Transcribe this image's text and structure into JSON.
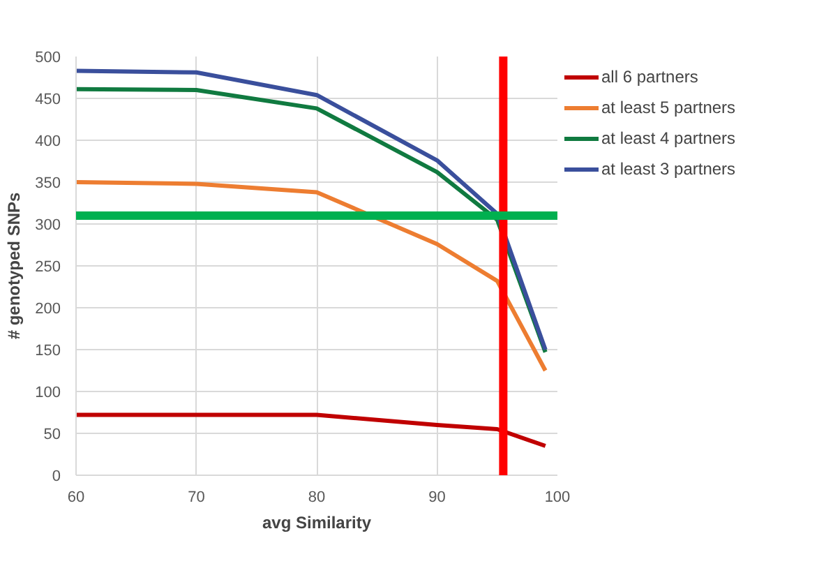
{
  "chart_data": {
    "type": "line",
    "xlabel": "avg Similarity",
    "ylabel": "# genotyped SNPs",
    "x": [
      60,
      70,
      80,
      90,
      95,
      99
    ],
    "series": [
      {
        "name": "all 6 partners",
        "color": "#c00000",
        "values": [
          72,
          72,
          72,
          60,
          55,
          35
        ]
      },
      {
        "name": "at least 5 partners",
        "color": "#ed7d31",
        "values": [
          350,
          348,
          338,
          276,
          232,
          125
        ]
      },
      {
        "name": "at least 4 partners",
        "color": "#107a40",
        "values": [
          461,
          460,
          438,
          362,
          305,
          147
        ]
      },
      {
        "name": "at least 3 partners",
        "color": "#3a4f9c",
        "values": [
          483,
          481,
          454,
          376,
          312,
          150
        ]
      }
    ],
    "xlim": [
      60,
      100
    ],
    "xticks": [
      60,
      70,
      80,
      90,
      100
    ],
    "ylim": [
      0,
      500
    ],
    "yticks": [
      0,
      50,
      100,
      150,
      200,
      250,
      300,
      350,
      400,
      450,
      500
    ],
    "ref_lines": [
      {
        "axis": "x",
        "value": 95.5,
        "color": "#ff0000"
      },
      {
        "axis": "y",
        "value": 310,
        "color": "#00b050"
      }
    ],
    "grid": true,
    "legend": "right",
    "marker": "none",
    "line_style": "solid"
  }
}
